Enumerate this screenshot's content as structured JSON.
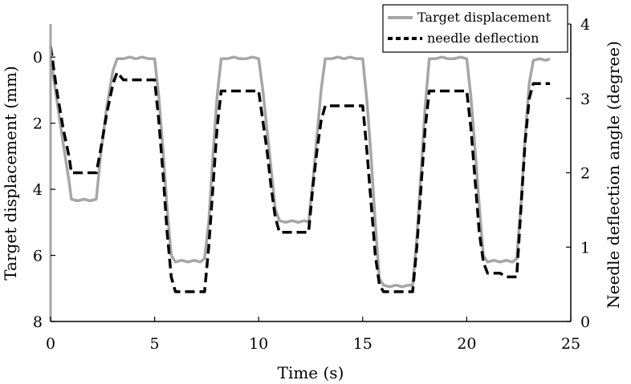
{
  "chart_data": {
    "type": "line",
    "title": "",
    "xlabel": "Time (s)",
    "ylabel_left": "Target displacement (mm)",
    "ylabel_right": "Needle deflection angle (degree)",
    "xlim": [
      0,
      25
    ],
    "ylim_left": [
      8,
      -1
    ],
    "ylim_right": [
      0,
      4
    ],
    "x_ticks": [
      "0",
      "5",
      "10",
      "15",
      "20",
      "25"
    ],
    "y_left_ticks": [
      "0",
      "2",
      "4",
      "6",
      "8"
    ],
    "y_right_ticks": [
      "0",
      "1",
      "2",
      "3",
      "4"
    ],
    "grid": false,
    "legend_position": "top-right",
    "series": [
      {
        "name": "Target displacement",
        "axis": "left",
        "color": "#a6a6a6",
        "style": "solid",
        "x": [
          0,
          0.3,
          0.6,
          0.9,
          1.0,
          1.3,
          1.6,
          1.9,
          2.2,
          2.4,
          2.7,
          3.0,
          3.2,
          3.5,
          3.8,
          4.1,
          4.4,
          4.7,
          5.0,
          5.2,
          5.4,
          5.6,
          5.8,
          6.0,
          6.3,
          6.6,
          6.9,
          7.2,
          7.4,
          7.6,
          7.8,
          8.0,
          8.2,
          8.5,
          8.8,
          9.1,
          9.4,
          9.7,
          10.0,
          10.2,
          10.4,
          10.6,
          10.8,
          11.0,
          11.3,
          11.6,
          11.9,
          12.2,
          12.4,
          12.6,
          12.8,
          13.0,
          13.2,
          13.5,
          13.8,
          14.1,
          14.4,
          14.7,
          15.0,
          15.2,
          15.4,
          15.6,
          15.8,
          16.0,
          16.3,
          16.6,
          16.9,
          17.2,
          17.4,
          17.6,
          17.8,
          18.0,
          18.2,
          18.5,
          18.8,
          19.1,
          19.4,
          19.7,
          20.0,
          20.2,
          20.4,
          20.6,
          20.8,
          21.0,
          21.3,
          21.6,
          21.9,
          22.2,
          22.4,
          22.6,
          22.8,
          23.0,
          23.2,
          23.5,
          23.8,
          24.0
        ],
        "y": [
          0.0,
          1.3,
          2.6,
          3.8,
          4.3,
          4.35,
          4.3,
          4.35,
          4.3,
          3.0,
          1.5,
          0.4,
          0.05,
          0.05,
          0.0,
          0.05,
          0.0,
          0.05,
          0.05,
          1.2,
          2.8,
          4.6,
          6.0,
          6.2,
          6.15,
          6.2,
          6.15,
          6.2,
          6.1,
          5.0,
          3.0,
          1.2,
          0.05,
          0.05,
          0.0,
          0.05,
          0.05,
          0.0,
          0.05,
          1.0,
          2.2,
          3.4,
          4.6,
          4.95,
          5.0,
          4.95,
          5.0,
          4.95,
          5.0,
          3.8,
          2.4,
          1.0,
          0.05,
          0.05,
          0.0,
          0.05,
          0.0,
          0.05,
          0.05,
          1.3,
          3.0,
          5.0,
          6.7,
          6.9,
          6.95,
          6.9,
          6.95,
          6.9,
          6.9,
          5.5,
          3.5,
          1.5,
          0.05,
          0.05,
          0.0,
          0.05,
          0.05,
          0.0,
          0.05,
          1.2,
          2.8,
          4.5,
          6.0,
          6.2,
          6.15,
          6.2,
          6.15,
          6.2,
          6.1,
          4.5,
          2.5,
          0.8,
          0.1,
          0.05,
          0.1,
          0.05
        ]
      },
      {
        "name": "needle deflection",
        "axis": "right",
        "color": "#000000",
        "style": "dashed",
        "x": [
          0,
          0.3,
          0.6,
          0.9,
          1.0,
          1.3,
          1.6,
          1.9,
          2.2,
          2.4,
          2.7,
          3.0,
          3.2,
          3.5,
          3.8,
          4.1,
          4.4,
          4.7,
          5.0,
          5.2,
          5.4,
          5.6,
          5.8,
          6.0,
          6.3,
          6.6,
          6.9,
          7.2,
          7.4,
          7.6,
          7.8,
          8.0,
          8.2,
          8.5,
          8.8,
          9.1,
          9.4,
          9.7,
          10.0,
          10.2,
          10.4,
          10.6,
          10.8,
          11.0,
          11.3,
          11.6,
          11.9,
          12.2,
          12.4,
          12.6,
          12.8,
          13.0,
          13.2,
          13.5,
          13.8,
          14.1,
          14.4,
          14.7,
          15.0,
          15.2,
          15.4,
          15.6,
          15.8,
          16.0,
          16.3,
          16.6,
          16.9,
          17.2,
          17.4,
          17.6,
          17.8,
          18.0,
          18.2,
          18.5,
          18.8,
          19.1,
          19.4,
          19.7,
          20.0,
          20.2,
          20.4,
          20.6,
          20.8,
          21.0,
          21.3,
          21.6,
          21.9,
          22.2,
          22.4,
          22.6,
          22.8,
          23.0,
          23.2,
          23.5,
          23.8,
          24.0
        ],
        "y": [
          3.7,
          3.1,
          2.6,
          2.2,
          2.0,
          2.0,
          2.0,
          2.0,
          2.0,
          2.3,
          2.8,
          3.2,
          3.35,
          3.25,
          3.25,
          3.25,
          3.25,
          3.25,
          3.25,
          2.7,
          2.0,
          1.2,
          0.6,
          0.4,
          0.4,
          0.4,
          0.4,
          0.4,
          0.4,
          1.0,
          1.8,
          2.6,
          3.1,
          3.1,
          3.1,
          3.1,
          3.1,
          3.1,
          3.1,
          2.7,
          2.3,
          1.8,
          1.4,
          1.2,
          1.2,
          1.2,
          1.2,
          1.2,
          1.2,
          1.8,
          2.3,
          2.7,
          2.9,
          2.9,
          2.9,
          2.9,
          2.9,
          2.9,
          2.9,
          2.3,
          1.6,
          0.9,
          0.5,
          0.4,
          0.4,
          0.4,
          0.4,
          0.4,
          0.4,
          1.0,
          1.8,
          2.6,
          3.1,
          3.1,
          3.1,
          3.1,
          3.1,
          3.1,
          3.1,
          2.6,
          1.9,
          1.2,
          0.8,
          0.65,
          0.65,
          0.65,
          0.6,
          0.6,
          0.6,
          1.5,
          2.4,
          3.0,
          3.2,
          3.2,
          3.2,
          3.2
        ]
      }
    ]
  }
}
